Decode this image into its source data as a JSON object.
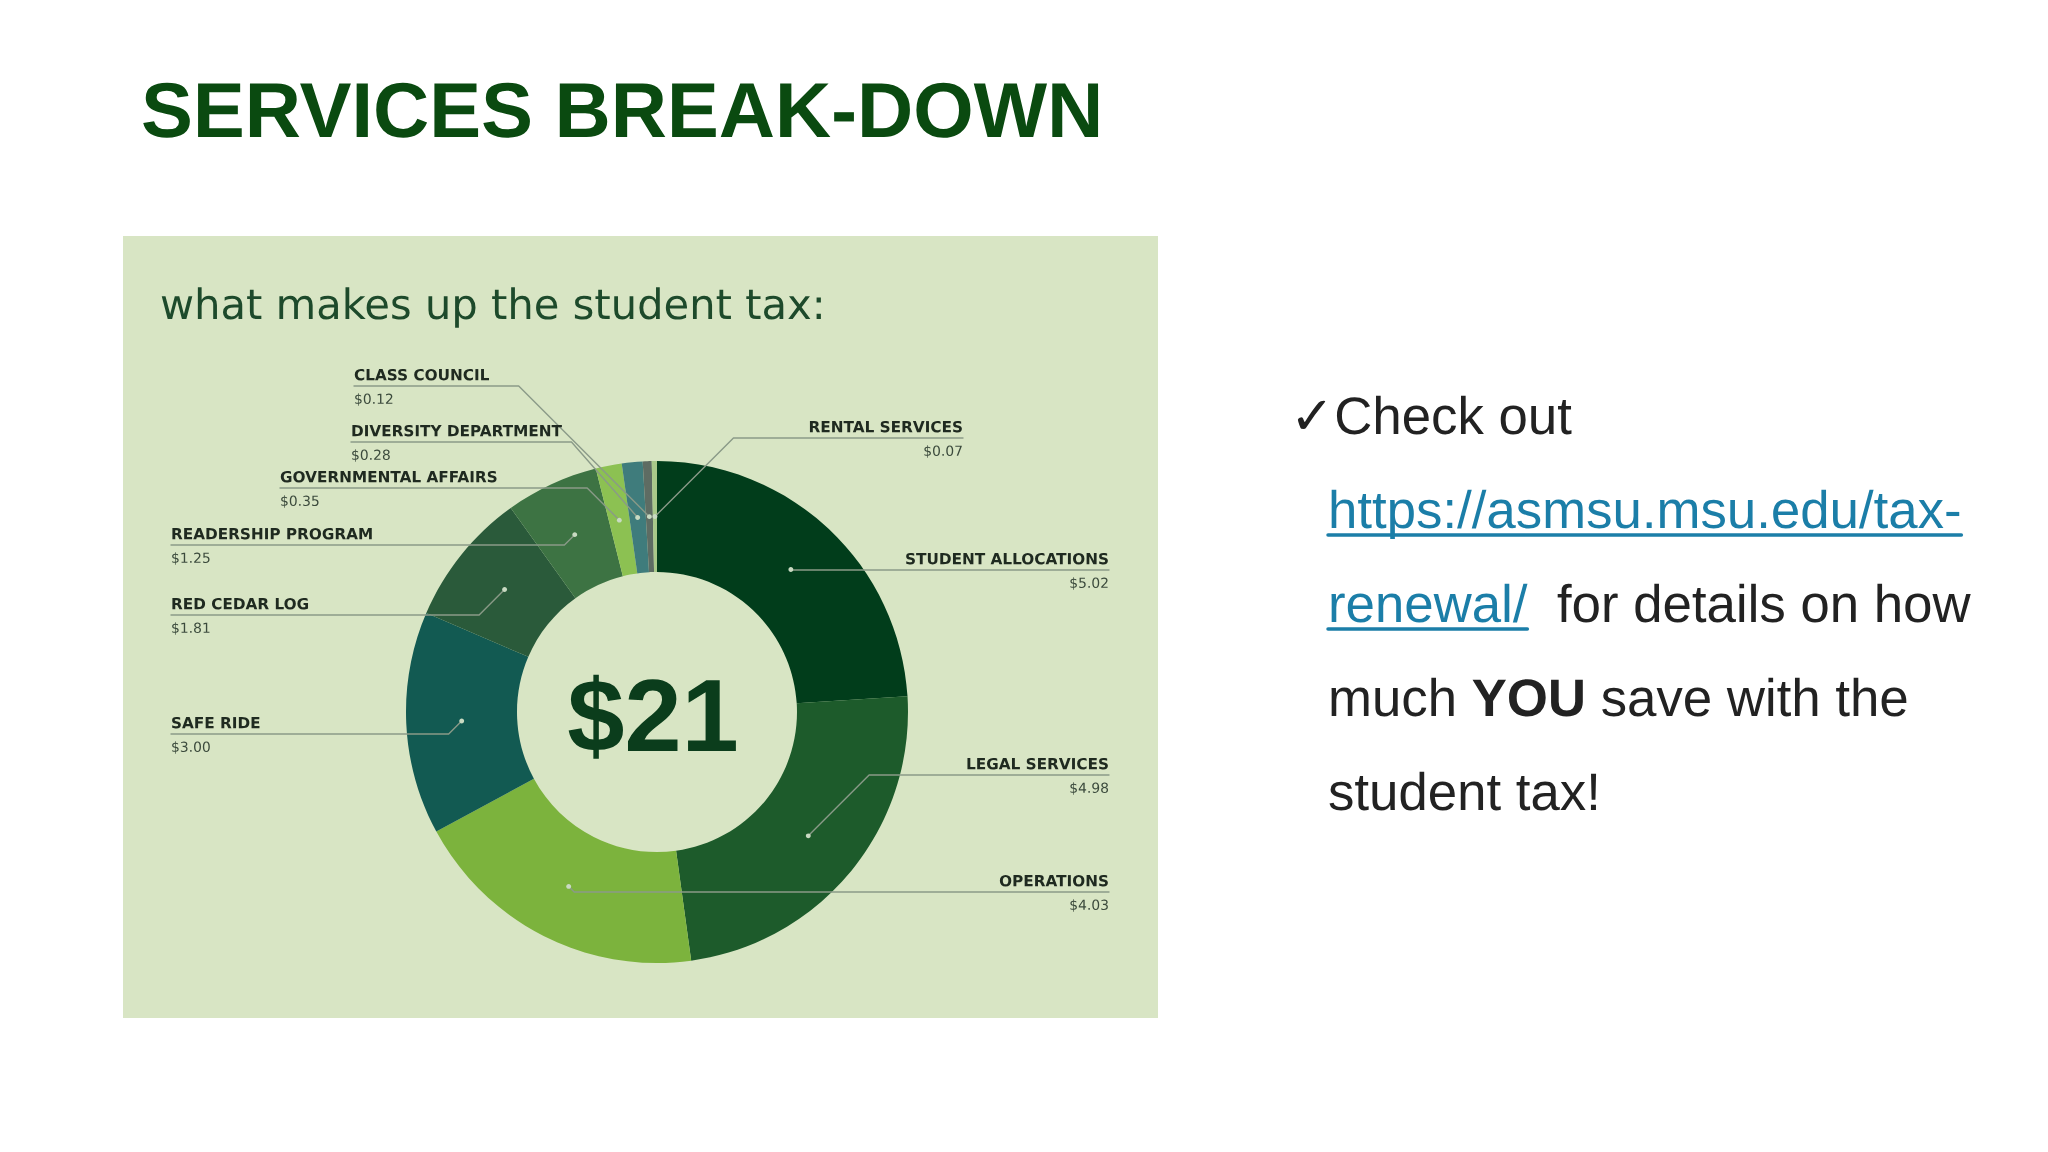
{
  "chart_data": {
    "type": "donut",
    "title": "SERVICES BREAK-DOWN",
    "subtitle": "what makes up the student tax:",
    "categories": [
      "STUDENT ALLOCATIONS",
      "LEGAL SERVICES",
      "OPERATIONS",
      "SAFE RIDE",
      "RED CEDAR LOG",
      "READERSHIP PROGRAM",
      "GOVERNMENTAL AFFAIRS",
      "DIVERSITY DEPARTMENT",
      "CLASS COUNCIL",
      "RENTAL SERVICES"
    ],
    "values": [
      5.02,
      4.98,
      4.03,
      3.0,
      1.81,
      1.25,
      0.35,
      0.28,
      0.12,
      0.07
    ],
    "value_labels": [
      "$5.02",
      "$4.98",
      "$4.03",
      "$3.00",
      "$1.81",
      "$1.25",
      "$0.35",
      "$0.28",
      "$0.12",
      "$0.07"
    ],
    "colors": [
      "#013d1b",
      "#1d5b2b",
      "#7cb33d",
      "#125a52",
      "#2a5a3a",
      "#3d7343",
      "#8cc152",
      "#3f7c7c",
      "#5e6c63",
      "#a9c98a"
    ],
    "annotations": [
      "$21",
      "✓",
      "Check out",
      "https://asmsu.msu.edu/tax-",
      "renewal/",
      "for details on how",
      "much",
      "YOU",
      "save with the",
      "student tax!"
    ]
  }
}
